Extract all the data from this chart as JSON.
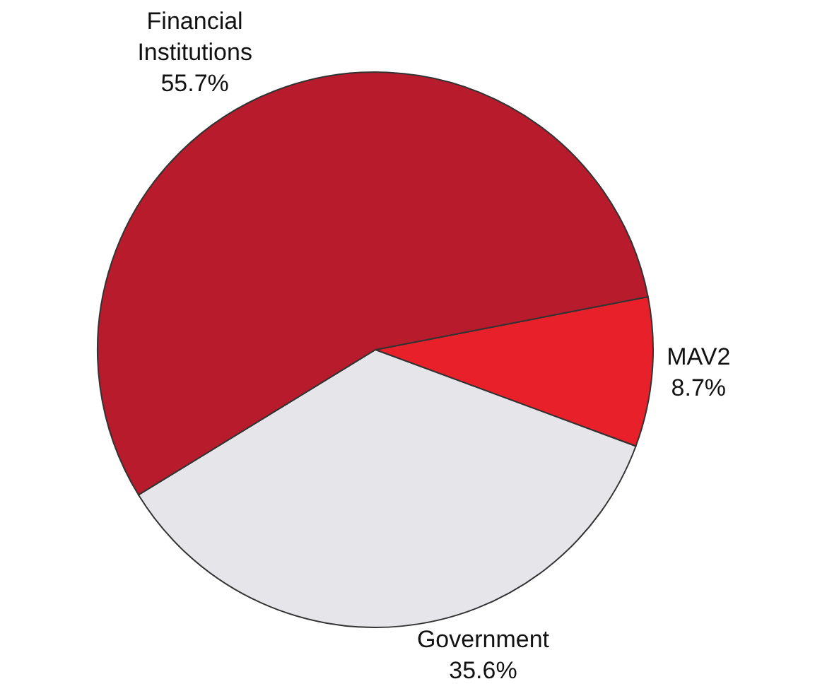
{
  "chart_data": {
    "type": "pie",
    "categories": [
      "MAV2",
      "Government",
      "Financial Institutions"
    ],
    "values": [
      8.7,
      35.6,
      55.7
    ],
    "colors": [
      "#e8202a",
      "#e5e5ea",
      "#b81c2c"
    ],
    "value_labels": [
      "8.7%",
      "35.6%",
      "55.7%"
    ],
    "legend": false
  }
}
